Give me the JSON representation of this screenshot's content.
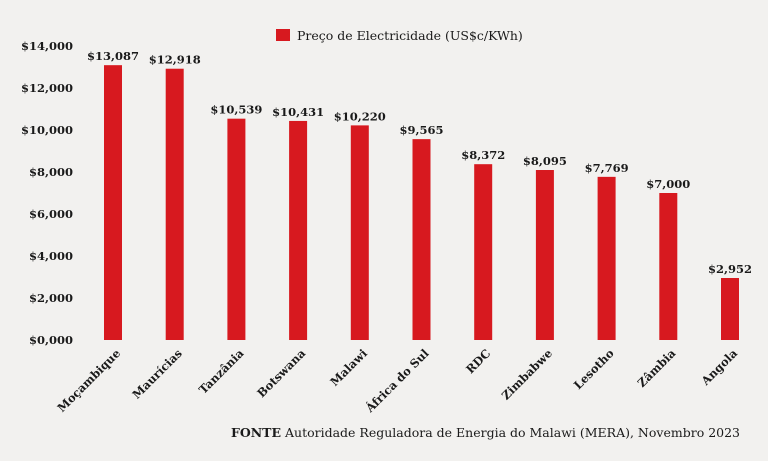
{
  "chart_data": {
    "type": "bar",
    "categories": [
      "Moçambique",
      "Maurícias",
      "Tanzânia",
      "Botswana",
      "Malawi",
      "África do Sul",
      "RDC",
      "Zimbabwe",
      "Lesotho",
      "Zâmbia",
      "Angola"
    ],
    "series": [
      {
        "name": "Preço de Electricidade (US$c/KWh)",
        "values": [
          13.087,
          12.918,
          10.539,
          10.431,
          10.22,
          9.565,
          8.372,
          8.095,
          7.769,
          7.0,
          2.952
        ],
        "labels": [
          "$13,087",
          "$12,918",
          "$10,539",
          "$10,431",
          "$10,220",
          "$9,565",
          "$8,372",
          "$8,095",
          "$7,769",
          "$7,000",
          "$2,952"
        ],
        "color": "#d7191f"
      }
    ],
    "ylim": [
      0,
      14
    ],
    "yticks": [
      0,
      2,
      4,
      6,
      8,
      10,
      12,
      14
    ],
    "ytick_labels": [
      "$0,000",
      "$2,000",
      "$4,000",
      "$6,000",
      "$8,000",
      "$10,000",
      "$12,000",
      "$14,000"
    ],
    "legend": "top-center",
    "grid": false
  },
  "source": {
    "label": "FONTE",
    "text": " Autoridade Reguladora de Energia do Malawi (MERA), Novembro 2023"
  }
}
